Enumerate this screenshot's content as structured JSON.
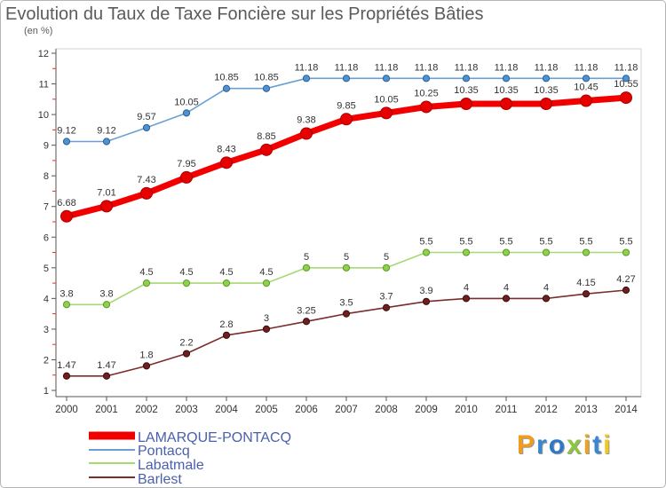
{
  "logo": {
    "text": "Proxiti",
    "colors": [
      "#f29b1d",
      "#3a86d0",
      "#2f77c8",
      "#8cc63f",
      "#f0a01e",
      "#3a86d0",
      "#f2c81a"
    ]
  },
  "chart_data": {
    "type": "line",
    "title": "Evolution du Taux de Taxe Foncière sur les Propriétés Bâties",
    "ylabel": "(en %)",
    "x": [
      2000,
      2001,
      2002,
      2003,
      2004,
      2005,
      2006,
      2007,
      2008,
      2009,
      2010,
      2011,
      2012,
      2013,
      2014
    ],
    "ylim": [
      1,
      12
    ],
    "yticks": [
      1,
      2,
      3,
      4,
      5,
      6,
      7,
      8,
      9,
      10,
      11,
      12
    ],
    "legend_position": "bottom-left",
    "series": [
      {
        "name": "LAMARQUE-PONTACQ",
        "color": "#f20000",
        "marker_color": "#e60000",
        "marker_edge": "#a80000",
        "values": [
          6.68,
          7.01,
          7.43,
          7.95,
          8.43,
          8.85,
          9.38,
          9.85,
          10.05,
          10.25,
          10.35,
          10.35,
          10.35,
          10.45,
          10.55
        ]
      },
      {
        "name": "Pontacq",
        "color": "#6a9fd4",
        "marker_color": "#4f92d2",
        "marker_edge": "#2d5f95",
        "values": [
          9.12,
          9.12,
          9.57,
          10.05,
          10.85,
          10.85,
          11.18,
          11.18,
          11.18,
          11.18,
          11.18,
          11.18,
          11.18,
          11.18,
          11.18
        ]
      },
      {
        "name": "Labatmale",
        "color": "#a6d873",
        "marker_color": "#8fd14f",
        "marker_edge": "#5a9a23",
        "values": [
          3.8,
          3.8,
          4.5,
          4.5,
          4.5,
          4.5,
          5,
          5,
          5,
          5.5,
          5.5,
          5.5,
          5.5,
          5.5,
          5.5
        ]
      },
      {
        "name": "Barlest",
        "color": "#7b2c2c",
        "marker_color": "#6e1f1f",
        "marker_edge": "#3c0c0c",
        "values": [
          1.47,
          1.47,
          1.8,
          2.2,
          2.8,
          3,
          3.25,
          3.5,
          3.7,
          3.9,
          4,
          4,
          4,
          4.15,
          4.27
        ]
      }
    ]
  }
}
